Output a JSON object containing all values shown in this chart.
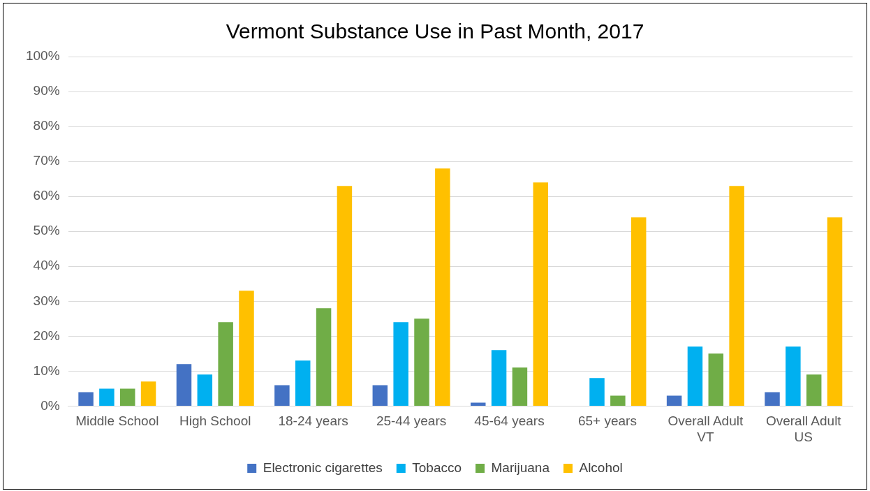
{
  "chart_data": {
    "type": "bar",
    "title": "Vermont Substance Use in Past Month, 2017",
    "categories": [
      "Middle School",
      "High School",
      "18-24 years",
      "25-44 years",
      "45-64 years",
      "65+ years",
      "Overall Adult VT",
      "Overall Adult US"
    ],
    "series": [
      {
        "name": "Electronic cigarettes",
        "color": "#4472c4",
        "values": [
          4,
          12,
          6,
          6,
          1,
          null,
          3,
          4
        ]
      },
      {
        "name": "Tobacco",
        "color": "#00b0f0",
        "values": [
          5,
          9,
          13,
          24,
          16,
          8,
          17,
          17
        ]
      },
      {
        "name": "Marijuana",
        "color": "#70ad47",
        "values": [
          5,
          24,
          28,
          25,
          11,
          3,
          15,
          9
        ]
      },
      {
        "name": "Alcohol",
        "color": "#ffc000",
        "values": [
          7,
          33,
          63,
          68,
          64,
          54,
          63,
          54
        ]
      }
    ],
    "ylim": [
      0,
      100
    ],
    "yticks": [
      {
        "value": 0,
        "label": "0%"
      },
      {
        "value": 10,
        "label": "10%"
      },
      {
        "value": 20,
        "label": "20%"
      },
      {
        "value": 30,
        "label": "30%"
      },
      {
        "value": 40,
        "label": "40%"
      },
      {
        "value": 50,
        "label": "50%"
      },
      {
        "value": 60,
        "label": "60%"
      },
      {
        "value": 70,
        "label": "70%"
      },
      {
        "value": 80,
        "label": "80%"
      },
      {
        "value": 90,
        "label": "90%"
      },
      {
        "value": 100,
        "label": "100%"
      }
    ],
    "grid": "y",
    "legend": "bottom"
  }
}
